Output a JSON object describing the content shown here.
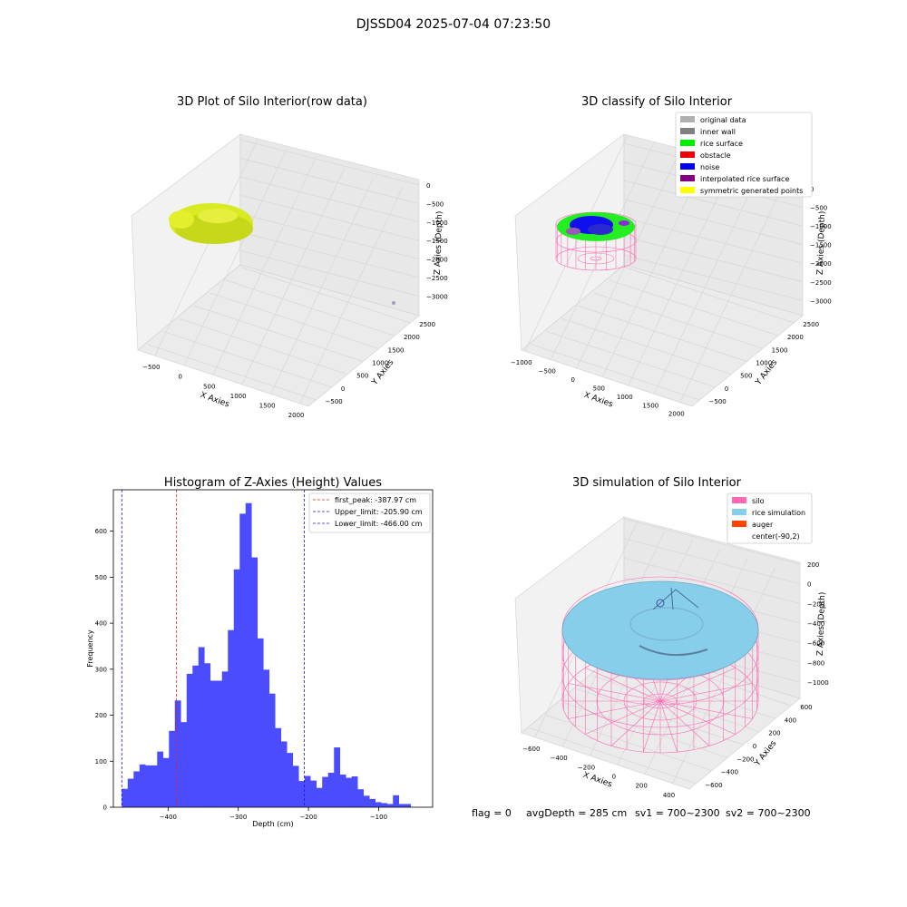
{
  "suptitle": "DJSSD04 2025-07-04 07:23:50",
  "footer": {
    "flag": "flag = 0",
    "avg_depth": "avgDepth = 285 cm",
    "sv1": "sv1 = 700~2300",
    "sv2": "sv2 = 700~2300"
  },
  "colors": {
    "bar_fill": "#4c4cff",
    "peak_line": "#dd2222",
    "limit_line": "#1a1acc",
    "pane": "#f2f2f2",
    "grid": "#d9d9d9",
    "points_yellow": "#d4e81a",
    "silo_pink": "#ff69b4",
    "rice_blue": "#87ceeb",
    "auger_orange": "#ff4500",
    "noise_blue": "#0000ee",
    "rice_green": "#22ee22"
  },
  "chart_data": [
    {
      "type": "scatter",
      "title": "3D Plot of Silo Interior(row data)",
      "xlabel": "X Axies",
      "ylabel": "Y Axies",
      "zlabel": "Z Axies (Depth)",
      "x_ticks": [
        "−500",
        "0",
        "500",
        "1000",
        "1500",
        "2000"
      ],
      "y_ticks": [
        "−500",
        "0",
        "500",
        "1000",
        "1500",
        "2000",
        "2500"
      ],
      "z_ticks": [
        "0",
        "−500",
        "−1000",
        "−1500",
        "−2000",
        "−2500",
        "−3000"
      ]
    },
    {
      "type": "scatter",
      "title": "3D classify of Silo Interior",
      "xlabel": "X Axies",
      "ylabel": "Y Axies",
      "zlabel": "Z Axies (Depth)",
      "x_ticks": [
        "−1000",
        "−500",
        "0",
        "500",
        "1000",
        "1500",
        "2000"
      ],
      "y_ticks": [
        "−500",
        "0",
        "500",
        "1000",
        "1500",
        "2000",
        "2500"
      ],
      "z_ticks": [
        "0",
        "−500",
        "−1000",
        "−1500",
        "−2000",
        "−2500",
        "−3000"
      ],
      "legend_position": "top-right",
      "legend": [
        {
          "label": "original data",
          "color": "#b0b0b0"
        },
        {
          "label": "inner wall",
          "color": "#808080"
        },
        {
          "label": "rice surface",
          "color": "#00ee00"
        },
        {
          "label": "obstacle",
          "color": "#ee0000"
        },
        {
          "label": "noise",
          "color": "#0000ee"
        },
        {
          "label": "interpolated rice surface",
          "color": "#800080"
        },
        {
          "label": "symmetric generated points",
          "color": "#ffff00"
        }
      ]
    },
    {
      "type": "bar",
      "title": "Histogram of Z-Axies (Height) Values",
      "xlabel": "Depth (cm)",
      "ylabel": "Frequency",
      "xlim": [
        -478,
        -23
      ],
      "ylim": [
        0,
        690
      ],
      "x_ticks": [
        {
          "value": -400,
          "label": "−400"
        },
        {
          "value": -300,
          "label": "−300"
        },
        {
          "value": -200,
          "label": "−200"
        },
        {
          "value": -100,
          "label": "−100"
        }
      ],
      "y_ticks": [
        0,
        100,
        200,
        300,
        400,
        500,
        600
      ],
      "bin_start": -466,
      "bin_width": 8.4,
      "values": [
        40,
        62,
        78,
        93,
        91,
        91,
        121,
        107,
        166,
        232,
        185,
        290,
        308,
        348,
        313,
        275,
        275,
        295,
        385,
        517,
        638,
        661,
        543,
        367,
        299,
        247,
        172,
        143,
        118,
        90,
        57,
        68,
        58,
        42,
        66,
        75,
        130,
        71,
        64,
        67,
        39,
        25,
        18,
        11,
        9,
        7,
        26,
        7,
        7
      ],
      "vlines": [
        {
          "name": "first_peak: -387.97 cm",
          "x": -387.97,
          "color": "#dd2222"
        },
        {
          "name": "Upper_limit: -205.90 cm",
          "x": -205.9,
          "color": "#1a1acc"
        },
        {
          "name": "Lower_limit: -466.00 cm",
          "x": -466.0,
          "color": "#1a1acc"
        }
      ],
      "legend_position": "top-right"
    },
    {
      "type": "scatter",
      "title": "3D simulation of Silo Interior",
      "xlabel": "X Axies",
      "ylabel": "Y Axies",
      "zlabel": "Z Axies (Depth)",
      "x_ticks": [
        "−600",
        "−400",
        "−200",
        "0",
        "200",
        "400"
      ],
      "y_ticks": [
        "−600",
        "−400",
        "−200",
        "0",
        "200",
        "400",
        "600"
      ],
      "z_ticks": [
        "200",
        "0",
        "−200",
        "−400",
        "−600",
        "−800",
        "−1000"
      ],
      "legend_position": "top-right",
      "legend": [
        {
          "label": "silo",
          "color": "#ff69b4"
        },
        {
          "label": "rice simulation",
          "color": "#87ceeb"
        },
        {
          "label": "auger",
          "color": "#ff4500"
        },
        {
          "label": "center(-90,2)",
          "color": "none"
        }
      ]
    }
  ]
}
